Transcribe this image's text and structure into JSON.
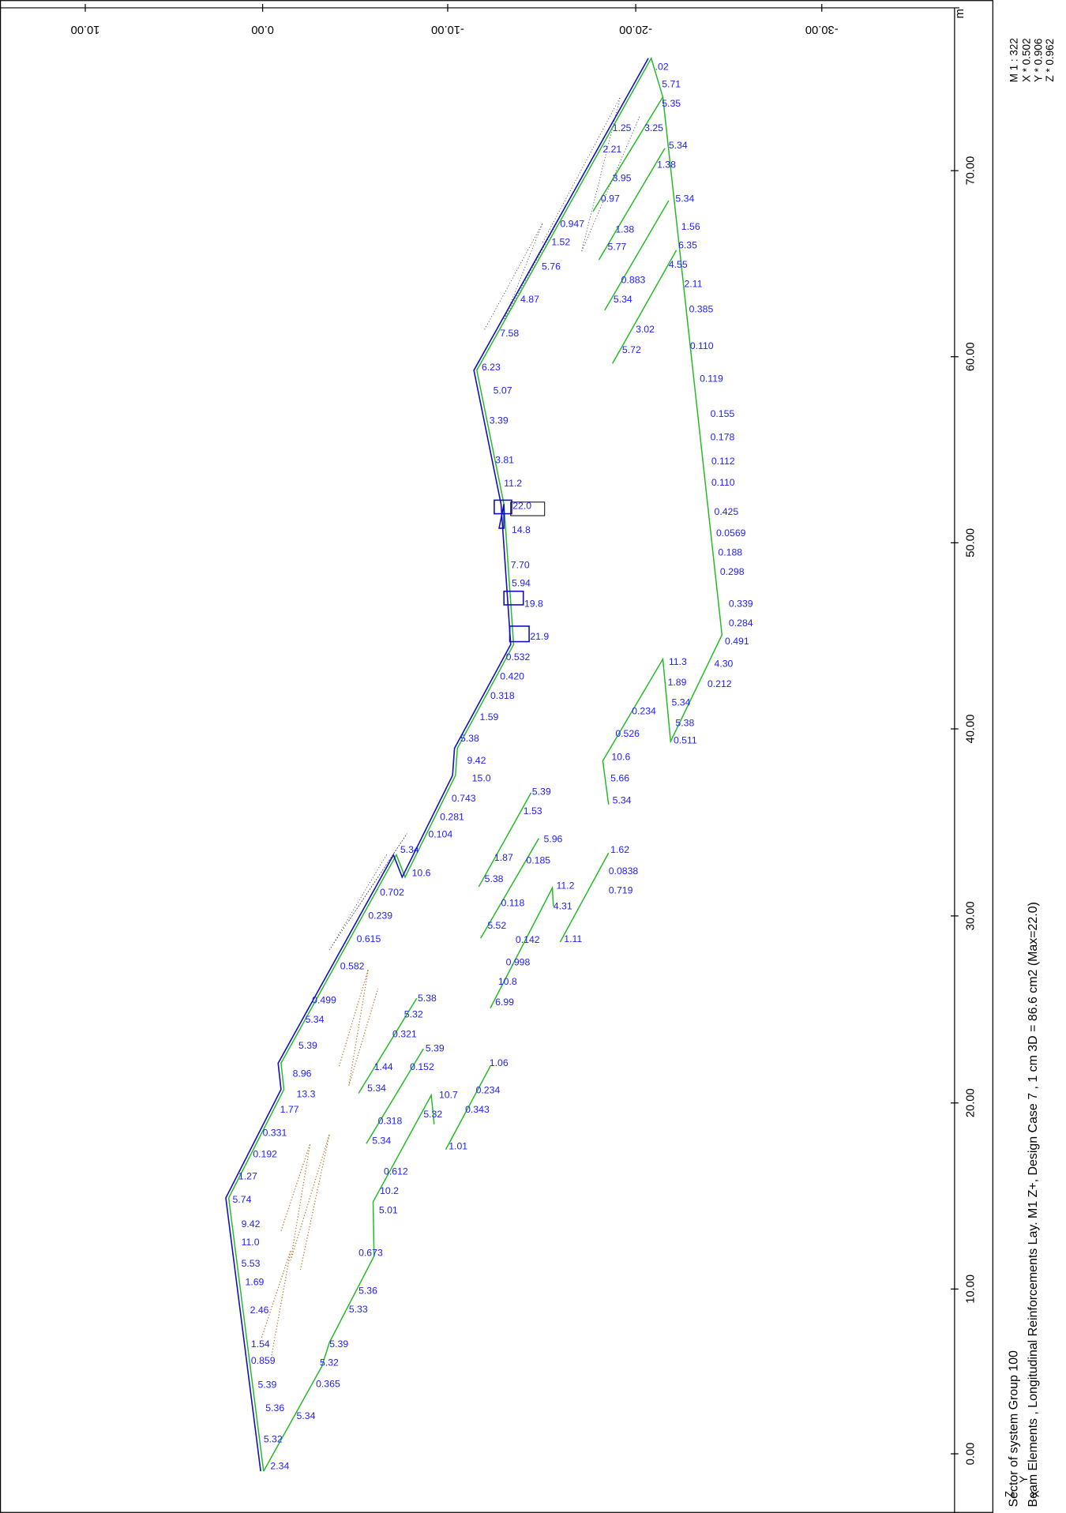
{
  "header": {
    "scale": "M 1 : 322",
    "factors": [
      "X * 0.502",
      "Y * 0.906",
      "Z * 0.962"
    ]
  },
  "axes": {
    "unit": "m",
    "top_ticks": [
      "10.00",
      "0.00",
      "-10.00",
      "-20.00",
      "-30.00"
    ],
    "right_ticks": [
      "0.00",
      "10.00",
      "20.00",
      "30.00",
      "40.00",
      "50.00",
      "60.00",
      "70.00"
    ]
  },
  "footer": {
    "line1": "Sector of system Group 100",
    "line2": "Beam Elements , Longitudinal Reinforcements Lay. M1 Z+, Design Case 7   , 1 cm 3D = 86.6 cm2 (Max=22.0)"
  },
  "triad": [
    "Z",
    "Y",
    "X"
  ],
  "labels": [
    ".02",
    "5.71",
    "5.35",
    "1.25",
    "3.25",
    "2.21",
    "5.34",
    "1.38",
    "3.95",
    "0.97",
    "5.34",
    "0.947",
    "1.38",
    "1.56",
    "1.52",
    "5.77",
    "6.35",
    "4.55",
    "5.76",
    "0.883",
    "2.11",
    "4.87",
    "5.34",
    "0.385",
    "3.02",
    "7.58",
    "5.72",
    "0.110",
    "6.23",
    "0.119",
    "5.07",
    "3.39",
    "0.155",
    "0.178",
    "0.112",
    "3.81",
    "11.2",
    "0.110",
    "22.0",
    "0.425",
    "14.8",
    "0.0569",
    "0.188",
    "7.70",
    "0.298",
    "5.94",
    "19.8",
    "0.339",
    "0.284",
    "21.9",
    "0.491",
    "0.532",
    "11.3",
    "4.30",
    "0.420",
    "1.89",
    "0.212",
    "0.318",
    "5.34",
    "0.234",
    "1.59",
    "5.38",
    "0.526",
    "0.511",
    "5.38",
    "9.42",
    "10.6",
    "15.0",
    "5.66",
    "5.34",
    "0.743",
    "5.39",
    "0.281",
    "1.53",
    "0.104",
    "5.96",
    "5.34",
    "1.62",
    "1.87",
    "0.185",
    "10.6",
    "0.0838",
    "5.38",
    "11.2",
    "0.702",
    "0.719",
    "0.118",
    "4.31",
    "0.239",
    "5.52",
    "1.11",
    "0.142",
    "0.615",
    "0.998",
    "0.582",
    "10.8",
    "6.99",
    "0.499",
    "5.38",
    "5.32",
    "5.34",
    "0.321",
    "5.39",
    "5.39",
    "1.44",
    "1.06",
    "0.152",
    "8.96",
    "5.34",
    "10.7",
    "0.234",
    "13.3",
    "1.77",
    "5.32",
    "0.343",
    "0.318",
    "5.34",
    "0.331",
    "1.01",
    "0.192",
    "0.612",
    "1.27",
    "10.2",
    "5.74",
    "5.01",
    "9.42",
    "11.0",
    "0.673",
    "5.53",
    "1.69",
    "5.36",
    "5.33",
    "2.46",
    "1.54",
    "5.39",
    "0.859",
    "5.32",
    "5.39",
    "0.365",
    "5.36",
    "5.34",
    "5.32",
    "2.34"
  ]
}
